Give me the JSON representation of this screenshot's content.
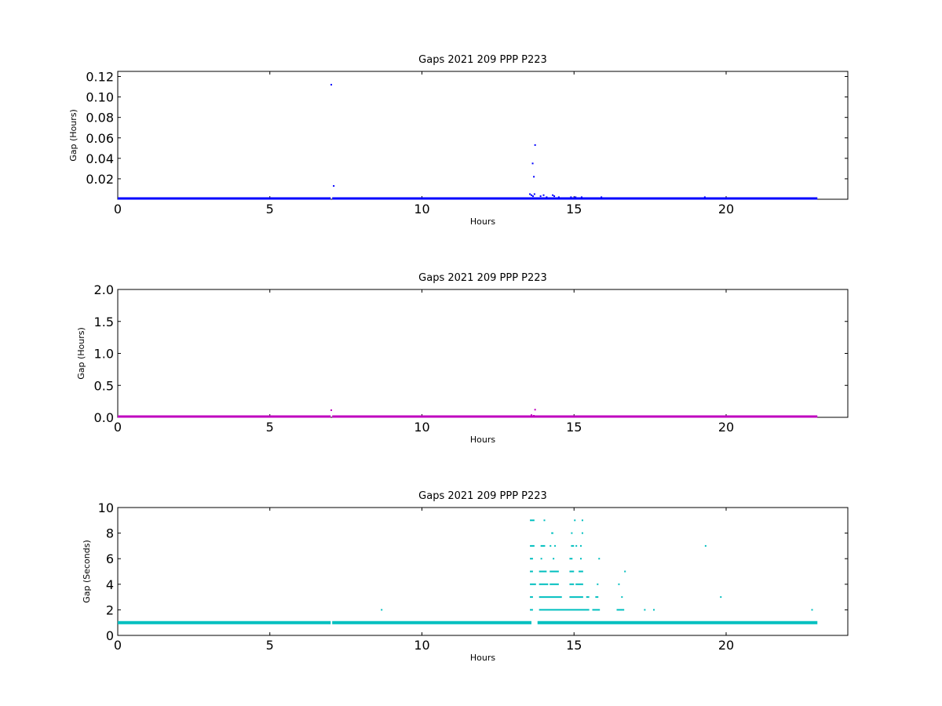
{
  "chart_data": [
    {
      "type": "scatter",
      "title": "Gaps 2021 209 PPP  P223",
      "xlabel": "Hours",
      "ylabel": "Gap (Hours)",
      "xlim": [
        0,
        24
      ],
      "ylim": [
        0,
        0.125
      ],
      "xticks": [
        0,
        5,
        10,
        15,
        20
      ],
      "xtick_labels": [
        "0",
        "5",
        "10",
        "15",
        "20"
      ],
      "yticks": [
        0.02,
        0.04,
        0.06,
        0.08,
        0.1,
        0.12
      ],
      "ytick_labels": [
        "0.02",
        "0.04",
        "0.06",
        "0.08",
        "0.10",
        "0.12"
      ],
      "grid": false,
      "color": "#0000ff",
      "baseline": {
        "y": 0.0003,
        "x_ranges": [
          [
            0,
            7.0
          ],
          [
            7.05,
            23.0
          ]
        ]
      },
      "points": [
        {
          "x": 7.02,
          "y": 0.112
        },
        {
          "x": 7.1,
          "y": 0.013
        },
        {
          "x": 13.64,
          "y": 0.035
        },
        {
          "x": 13.68,
          "y": 0.022
        },
        {
          "x": 13.72,
          "y": 0.053
        },
        {
          "x": 13.55,
          "y": 0.005
        },
        {
          "x": 13.6,
          "y": 0.004
        },
        {
          "x": 13.65,
          "y": 0.003
        },
        {
          "x": 13.7,
          "y": 0.005
        },
        {
          "x": 13.9,
          "y": 0.003
        },
        {
          "x": 14.0,
          "y": 0.004
        },
        {
          "x": 14.1,
          "y": 0.002
        },
        {
          "x": 14.3,
          "y": 0.004
        },
        {
          "x": 14.35,
          "y": 0.003
        },
        {
          "x": 14.5,
          "y": 0.002
        },
        {
          "x": 14.9,
          "y": 0.002
        },
        {
          "x": 15.05,
          "y": 0.002
        },
        {
          "x": 15.25,
          "y": 0.002
        },
        {
          "x": 15.9,
          "y": 0.002
        },
        {
          "x": 19.3,
          "y": 0.002
        }
      ]
    },
    {
      "type": "scatter",
      "title": "Gaps 2021 209 PPP  P223",
      "xlabel": "Hours",
      "ylabel": "Gap (Hours)",
      "xlim": [
        0,
        24
      ],
      "ylim": [
        0,
        2.0
      ],
      "xticks": [
        0,
        5,
        10,
        15,
        20
      ],
      "xtick_labels": [
        "0",
        "5",
        "10",
        "15",
        "20"
      ],
      "yticks": [
        0,
        0.5,
        1.0,
        1.5,
        2.0
      ],
      "ytick_labels": [
        "0.0",
        "0.5",
        "1.0",
        "1.5",
        "2.0"
      ],
      "grid": false,
      "color": "#bf00bf",
      "baseline": {
        "y": 0.003,
        "x_ranges": [
          [
            0,
            7.0
          ],
          [
            7.05,
            23.0
          ]
        ]
      },
      "points": [
        {
          "x": 7.02,
          "y": 0.112
        },
        {
          "x": 13.6,
          "y": 0.035
        },
        {
          "x": 13.72,
          "y": 0.12
        },
        {
          "x": 13.68,
          "y": 0.02
        }
      ]
    },
    {
      "type": "scatter",
      "title": "Gaps 2021 209 PPP  P223",
      "xlabel": "Hours",
      "ylabel": "Gap (Seconds)",
      "xlim": [
        0,
        24
      ],
      "ylim": [
        0,
        10
      ],
      "xticks": [
        0,
        5,
        10,
        15,
        20
      ],
      "xtick_labels": [
        "0",
        "5",
        "10",
        "15",
        "20"
      ],
      "yticks": [
        0,
        2,
        4,
        6,
        8,
        10
      ],
      "ytick_labels": [
        "0",
        "2",
        "4",
        "6",
        "8",
        "10"
      ],
      "grid": false,
      "color": "#00bfbf",
      "baseline": {
        "y": 1,
        "x_ranges": [
          [
            0,
            7.0
          ],
          [
            7.05,
            13.6
          ],
          [
            13.8,
            23.0
          ]
        ]
      },
      "segments": [
        {
          "y": 9,
          "x0": 13.55,
          "x1": 13.7
        },
        {
          "y": 9,
          "x0": 14.0,
          "x1": 14.02
        },
        {
          "y": 9,
          "x0": 15.0,
          "x1": 15.05
        },
        {
          "y": 9,
          "x0": 15.25,
          "x1": 15.3
        },
        {
          "y": 8,
          "x0": 14.25,
          "x1": 14.32
        },
        {
          "y": 8,
          "x0": 14.9,
          "x1": 14.95
        },
        {
          "y": 8,
          "x0": 15.25,
          "x1": 15.3
        },
        {
          "y": 7,
          "x0": 13.55,
          "x1": 13.7
        },
        {
          "y": 7,
          "x0": 13.9,
          "x1": 14.05
        },
        {
          "y": 7,
          "x0": 14.2,
          "x1": 14.25
        },
        {
          "y": 7,
          "x0": 14.35,
          "x1": 14.4
        },
        {
          "y": 7,
          "x0": 14.9,
          "x1": 15.0
        },
        {
          "y": 7,
          "x0": 15.05,
          "x1": 15.1
        },
        {
          "y": 7,
          "x0": 15.2,
          "x1": 15.25
        },
        {
          "y": 7,
          "x0": 19.3,
          "x1": 19.35
        },
        {
          "y": 6,
          "x0": 13.55,
          "x1": 13.65
        },
        {
          "y": 6,
          "x0": 13.9,
          "x1": 13.95
        },
        {
          "y": 6,
          "x0": 14.3,
          "x1": 14.35
        },
        {
          "y": 6,
          "x0": 14.85,
          "x1": 14.95
        },
        {
          "y": 6,
          "x0": 15.2,
          "x1": 15.25
        },
        {
          "y": 6,
          "x0": 15.8,
          "x1": 15.85
        },
        {
          "y": 5,
          "x0": 13.55,
          "x1": 13.65
        },
        {
          "y": 5,
          "x0": 13.85,
          "x1": 14.1
        },
        {
          "y": 5,
          "x0": 14.2,
          "x1": 14.5
        },
        {
          "y": 5,
          "x0": 14.85,
          "x1": 15.0
        },
        {
          "y": 5,
          "x0": 15.15,
          "x1": 15.3
        },
        {
          "y": 5,
          "x0": 16.65,
          "x1": 16.7
        },
        {
          "y": 4,
          "x0": 13.55,
          "x1": 13.75
        },
        {
          "y": 4,
          "x0": 13.85,
          "x1": 14.15
        },
        {
          "y": 4,
          "x0": 14.2,
          "x1": 14.5
        },
        {
          "y": 4,
          "x0": 14.85,
          "x1": 15.0
        },
        {
          "y": 4,
          "x0": 15.05,
          "x1": 15.3
        },
        {
          "y": 4,
          "x0": 15.75,
          "x1": 15.8
        },
        {
          "y": 4,
          "x0": 16.45,
          "x1": 16.5
        },
        {
          "y": 3,
          "x0": 13.55,
          "x1": 13.65
        },
        {
          "y": 3,
          "x0": 13.85,
          "x1": 14.6
        },
        {
          "y": 3,
          "x0": 14.85,
          "x1": 15.3
        },
        {
          "y": 3,
          "x0": 15.4,
          "x1": 15.5
        },
        {
          "y": 3,
          "x0": 15.7,
          "x1": 15.8
        },
        {
          "y": 3,
          "x0": 16.55,
          "x1": 16.6
        },
        {
          "y": 3,
          "x0": 19.8,
          "x1": 19.85
        },
        {
          "y": 2,
          "x0": 13.55,
          "x1": 13.65
        },
        {
          "y": 2,
          "x0": 8.65,
          "x1": 8.7
        },
        {
          "y": 2,
          "x0": 13.85,
          "x1": 15.5
        },
        {
          "y": 2,
          "x0": 15.6,
          "x1": 15.85
        },
        {
          "y": 2,
          "x0": 16.4,
          "x1": 16.65
        },
        {
          "y": 2,
          "x0": 17.3,
          "x1": 17.35
        },
        {
          "y": 2,
          "x0": 17.6,
          "x1": 17.65
        },
        {
          "y": 2,
          "x0": 22.8,
          "x1": 22.85
        }
      ]
    }
  ]
}
